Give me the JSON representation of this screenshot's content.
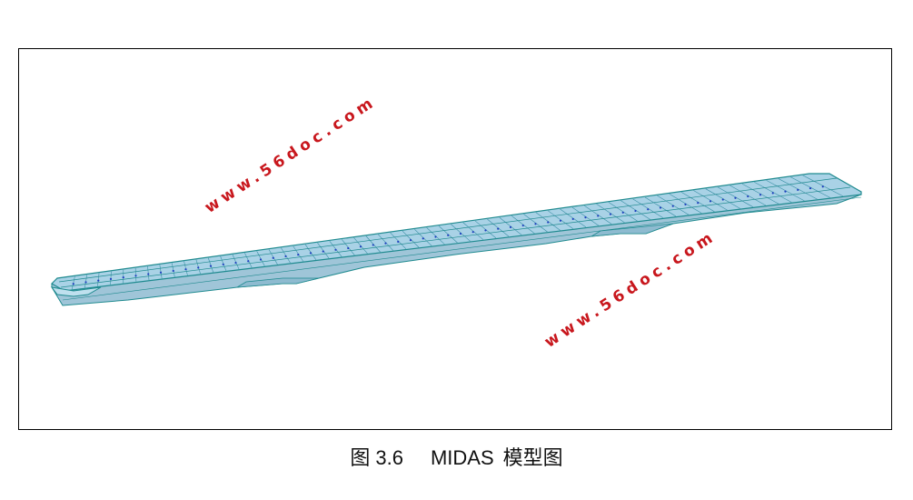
{
  "figure": {
    "caption_prefix": "图",
    "caption_number": "3.6",
    "caption_tool": "MIDAS",
    "caption_title": "模型图"
  },
  "watermarks": [
    {
      "text": "www.56doc.com"
    },
    {
      "text": "www.56doc.com"
    }
  ],
  "colors": {
    "deck": "#a9d2e6",
    "girder_side": "#9fc5d8",
    "edge": "#1f8a8f",
    "node": "#1f3fbf",
    "watermark": "#c8171d",
    "frame": "#000000"
  }
}
